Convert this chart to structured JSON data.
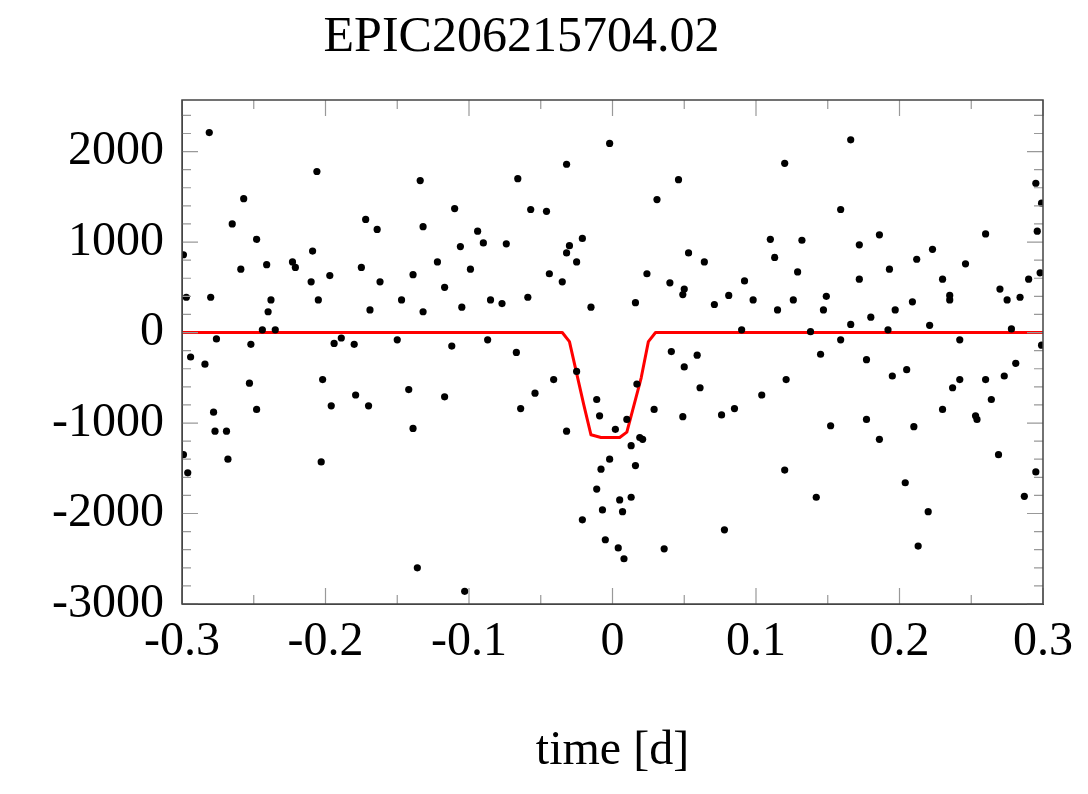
{
  "chart_data": {
    "type": "scatter",
    "title": "EPIC206215704.02",
    "xlabel": "time [d]",
    "xlim": [
      -0.3,
      0.3
    ],
    "ylim": [
      -3000,
      2570
    ],
    "xticks": [
      -0.3,
      {
        "value": -0.25,
        "label": null
      },
      -0.2,
      {
        "value": -0.15,
        "label": null
      },
      -0.1,
      {
        "value": -0.05,
        "label": null
      },
      0,
      {
        "value": 0.05,
        "label": null
      },
      0.1,
      {
        "value": 0.15,
        "label": null
      },
      0.2,
      {
        "value": 0.25,
        "label": null
      },
      0.3
    ],
    "yticks": [
      -3000,
      {
        "value": -2800,
        "label": null
      },
      {
        "value": -2600,
        "label": null
      },
      {
        "value": -2400,
        "label": null
      },
      {
        "value": -2200,
        "label": null
      },
      -2000,
      {
        "value": -1800,
        "label": null
      },
      {
        "value": -1600,
        "label": null
      },
      {
        "value": -1400,
        "label": null
      },
      {
        "value": -1200,
        "label": null
      },
      -1000,
      {
        "value": -800,
        "label": null
      },
      {
        "value": -600,
        "label": null
      },
      {
        "value": -400,
        "label": null
      },
      {
        "value": -200,
        "label": null
      },
      0,
      {
        "value": 200,
        "label": null
      },
      {
        "value": 400,
        "label": null
      },
      {
        "value": 600,
        "label": null
      },
      {
        "value": 800,
        "label": null
      },
      1000,
      {
        "value": 1200,
        "label": null
      },
      {
        "value": 1400,
        "label": null
      },
      {
        "value": 1600,
        "label": null
      },
      {
        "value": 1800,
        "label": null
      },
      2000,
      {
        "value": 2200,
        "label": null
      },
      {
        "value": 2400,
        "label": null
      }
    ],
    "grid": false,
    "legend": false,
    "marker": "circle",
    "series": [
      {
        "color": "#000000",
        "x": [
          -0.299,
          -0.297,
          -0.294,
          -0.299,
          -0.296,
          -0.281,
          -0.28,
          -0.276,
          -0.284,
          -0.278,
          -0.277,
          -0.269,
          -0.265,
          -0.257,
          -0.259,
          -0.248,
          -0.241,
          -0.238,
          -0.24,
          -0.244,
          -0.252,
          -0.253,
          -0.268,
          -0.248,
          -0.235,
          -0.223,
          -0.221,
          -0.21,
          -0.209,
          -0.206,
          -0.205,
          -0.203,
          -0.202,
          -0.197,
          -0.194,
          -0.189,
          -0.196,
          -0.18,
          -0.175,
          -0.172,
          -0.169,
          -0.17,
          -0.179,
          -0.164,
          -0.162,
          -0.15,
          -0.147,
          -0.142,
          -0.139,
          -0.134,
          -0.139,
          -0.136,
          -0.132,
          -0.132,
          -0.122,
          -0.117,
          -0.117,
          -0.112,
          -0.103,
          -0.106,
          -0.11,
          -0.105,
          -0.099,
          -0.094,
          -0.09,
          -0.087,
          -0.085,
          -0.074,
          -0.077,
          -0.066,
          -0.067,
          -0.064,
          -0.059,
          -0.057,
          -0.054,
          -0.046,
          -0.044,
          -0.041,
          -0.035,
          -0.032,
          -0.032,
          -0.03,
          -0.025,
          -0.025,
          -0.021,
          -0.032,
          -0.021,
          -0.015,
          -0.011,
          -0.011,
          -0.009,
          -0.008,
          -0.007,
          -0.005,
          -0.002,
          -0.002,
          0.002,
          0.005,
          0.007,
          0.008,
          0.004,
          0.01,
          0.013,
          0.013,
          0.016,
          0.017,
          0.019,
          0.016,
          0.021,
          0.024,
          0.029,
          0.031,
          0.036,
          0.041,
          0.046,
          0.04,
          0.049,
          0.053,
          0.05,
          0.059,
          0.05,
          0.064,
          0.061,
          0.049,
          0.076,
          0.071,
          0.081,
          0.085,
          0.092,
          0.09,
          0.098,
          0.104,
          0.11,
          0.115,
          0.113,
          0.12,
          0.12,
          0.121,
          0.126,
          0.129,
          0.132,
          0.138,
          0.142,
          0.147,
          0.152,
          0.159,
          0.149,
          0.166,
          0.172,
          0.172,
          0.159,
          0.177,
          0.177,
          0.186,
          0.186,
          0.193,
          0.195,
          0.197,
          0.205,
          0.209,
          0.21,
          0.212,
          0.221,
          0.223,
          0.23,
          0.204,
          0.213,
          0.22,
          0.23,
          0.235,
          0.237,
          0.242,
          0.246,
          0.254,
          0.26,
          0.264,
          0.27,
          0.273,
          0.278,
          0.275,
          0.284,
          0.287,
          0.29,
          0.295,
          0.296,
          0.298,
          0.299,
          0.295,
          0.299,
          0.269,
          0.253,
          0.26,
          0.242,
          0.235,
          0.281,
          0.18,
          0.192,
          0.166,
          0.145,
          0.078
        ],
        "values": [
          860,
          390,
          -270,
          -1350,
          -1550,
          2210,
          390,
          -70,
          -350,
          -880,
          -1090,
          -1090,
          1200,
          1480,
          700,
          1030,
          750,
          360,
          230,
          30,
          -130,
          -560,
          -1400,
          -850,
          30,
          780,
          720,
          560,
          900,
          1780,
          360,
          -1430,
          -520,
          630,
          -120,
          -60,
          -810,
          -130,
          720,
          1250,
          250,
          -810,
          -690,
          1140,
          560,
          -80,
          360,
          -630,
          640,
          1680,
          -1060,
          -2600,
          1170,
          230,
          780,
          500,
          -710,
          -150,
          -2860,
          950,
          1370,
          280,
          700,
          1120,
          990,
          -80,
          360,
          980,
          320,
          1700,
          -220,
          -840,
          390,
          1360,
          -670,
          1340,
          650,
          -520,
          560,
          1860,
          -1090,
          960,
          780,
          -430,
          -2070,
          880,
          1040,
          280,
          -740,
          -1730,
          -920,
          -1510,
          -1960,
          -2290,
          -1400,
          2090,
          -1070,
          -1850,
          -1980,
          -2500,
          -2380,
          -960,
          -1250,
          -1820,
          -1470,
          -570,
          -1160,
          330,
          -1180,
          650,
          -850,
          1470,
          -2390,
          -210,
          1690,
          550,
          420,
          880,
          -380,
          -250,
          480,
          780,
          -610,
          -930,
          -910,
          310,
          410,
          -840,
          570,
          30,
          360,
          -690,
          1030,
          250,
          830,
          -1520,
          1870,
          -520,
          360,
          670,
          1020,
          10,
          -1820,
          250,
          -1030,
          1360,
          400,
          2130,
          590,
          970,
          -80,
          -300,
          -960,
          -1180,
          1080,
          700,
          -480,
          250,
          -410,
          340,
          -1040,
          810,
          80,
          920,
          590,
          -1660,
          -2360,
          -1980,
          -850,
          360,
          -610,
          -80,
          760,
          -960,
          1090,
          -740,
          480,
          -480,
          40,
          360,
          390,
          -1810,
          590,
          1650,
          1120,
          660,
          -140,
          -1540,
          1430,
          -1350,
          -920,
          -520,
          -520,
          410,
          -340,
          170,
          30,
          90,
          -240,
          -2180
        ]
      },
      {
        "type": "line",
        "color": "#ff0000",
        "marker": "none",
        "line_style": "solid",
        "x": [
          -0.3,
          -0.035,
          -0.03,
          -0.02,
          -0.015,
          -0.008,
          0.005,
          0.01,
          0.02,
          0.025,
          0.03,
          0.3
        ],
        "values": [
          0,
          0,
          -100,
          -800,
          -1130,
          -1160,
          -1160,
          -1100,
          -500,
          -100,
          0,
          0
        ]
      }
    ]
  }
}
